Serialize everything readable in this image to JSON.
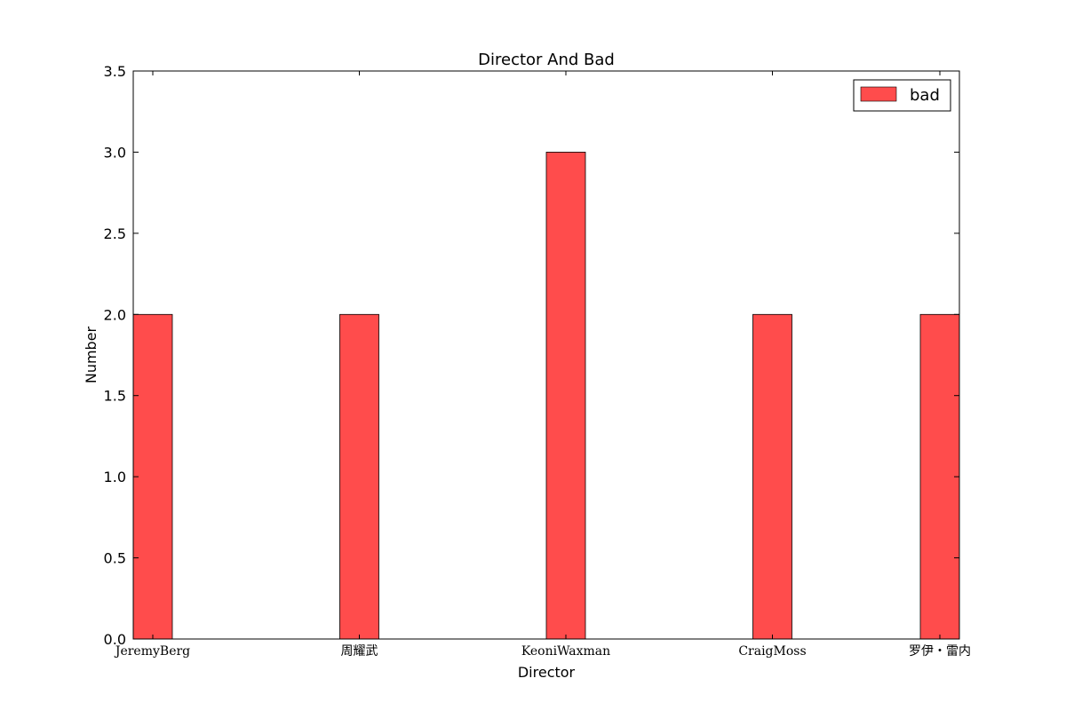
{
  "chart_data": {
    "type": "bar",
    "title": "Director And Bad",
    "xlabel": "Director",
    "ylabel": "Number",
    "categories": [
      "JeremyBerg",
      "周耀武",
      "KeoniWaxman",
      "CraigMoss",
      "罗伊・雷内"
    ],
    "series": [
      {
        "name": "bad",
        "values": [
          2,
          2,
          3,
          2,
          2
        ],
        "color": "#ff4c4c"
      }
    ],
    "ylim": [
      0,
      3.5
    ],
    "yticks": [
      "0.0",
      "0.5",
      "1.0",
      "1.5",
      "2.0",
      "2.5",
      "3.0",
      "3.5"
    ],
    "grid": false,
    "legend_position": "top-right"
  }
}
